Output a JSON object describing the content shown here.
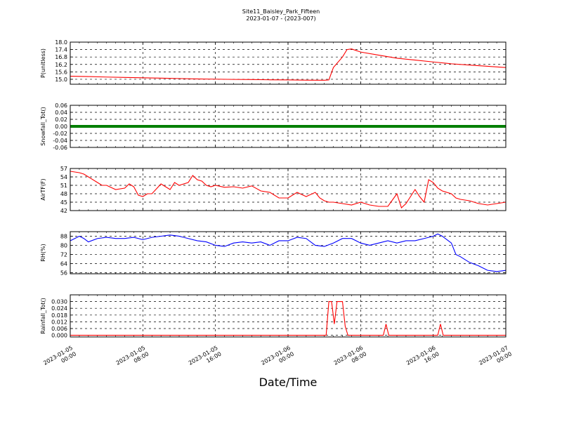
{
  "title": "Site11_Baisley_Park_Fifteen",
  "subtitle": "2023-01-07 - (2023-007)",
  "xlabel": "Date/Time",
  "x_ticks": [
    {
      "l1": "2023-01-05",
      "l2": "00:00",
      "h": 0
    },
    {
      "l1": "2023-01-05",
      "l2": "08:00",
      "h": 8
    },
    {
      "l1": "2023-01-05",
      "l2": "16:00",
      "h": 16
    },
    {
      "l1": "2023-01-06",
      "l2": "00:00",
      "h": 24
    },
    {
      "l1": "2023-01-06",
      "l2": "08:00",
      "h": 32
    },
    {
      "l1": "2023-01-06",
      "l2": "16:00",
      "h": 40
    },
    {
      "l1": "2023-01-07",
      "l2": "00:00",
      "h": 48
    }
  ],
  "chart_data": [
    {
      "type": "line",
      "name": "pressure",
      "ylabel": "P(unitless)",
      "ylim": [
        14.6,
        18.0
      ],
      "yticks": [
        15.0,
        15.6,
        16.2,
        16.8,
        17.4,
        18.0
      ],
      "decimals": 1,
      "color": "#ff0000",
      "x": [
        0,
        2,
        4,
        6,
        8,
        10,
        12,
        14,
        16,
        18,
        20,
        22,
        24,
        26,
        28,
        28.5,
        29,
        30,
        30.5,
        31,
        32,
        34,
        36,
        38,
        40,
        42,
        44,
        46,
        48
      ],
      "y": [
        15.25,
        15.22,
        15.18,
        15.15,
        15.12,
        15.09,
        15.06,
        15.03,
        15.01,
        14.99,
        14.98,
        14.96,
        14.95,
        14.93,
        14.92,
        14.95,
        15.95,
        16.8,
        17.4,
        17.45,
        17.2,
        16.95,
        16.7,
        16.55,
        16.4,
        16.25,
        16.15,
        16.05,
        15.95
      ],
      "grid": true
    },
    {
      "type": "line",
      "name": "snowfall",
      "ylabel": "Snowfall_Tot()",
      "ylim": [
        -0.06,
        0.06
      ],
      "yticks": [
        -0.06,
        -0.04,
        -0.02,
        0.0,
        0.02,
        0.04,
        0.06
      ],
      "decimals": 2,
      "color": "#007f00",
      "x": [
        0,
        48
      ],
      "y": [
        0.0,
        0.0
      ],
      "grid": true
    },
    {
      "type": "line",
      "name": "air_temperature",
      "ylabel": "AirTF(F)",
      "ylim": [
        42,
        57
      ],
      "yticks": [
        42,
        45,
        48,
        51,
        54,
        57
      ],
      "decimals": 0,
      "color": "#ff0000",
      "x": [
        0,
        1,
        1.5,
        2,
        3,
        3.5,
        4,
        5,
        6,
        6.5,
        7,
        7.5,
        8,
        8.5,
        9,
        10,
        11,
        11.5,
        12,
        13,
        13.5,
        14,
        14.5,
        15,
        15.5,
        16,
        17,
        18,
        19,
        20,
        21,
        22,
        23,
        24,
        25,
        26,
        27,
        27.5,
        28,
        28.5,
        29,
        30,
        31,
        32,
        33,
        34,
        35,
        36,
        36.5,
        37,
        38,
        38.5,
        39,
        39.5,
        40,
        40.5,
        41,
        42,
        42.5,
        43,
        44,
        45,
        46,
        47,
        48
      ],
      "y": [
        56,
        55.5,
        55,
        54,
        52,
        51,
        51,
        49.5,
        50,
        51.5,
        50.5,
        47.5,
        47,
        48,
        48,
        51.5,
        49.5,
        52,
        51,
        52,
        54.5,
        53,
        52.5,
        51,
        50.5,
        51,
        50.3,
        50.5,
        50,
        50.8,
        49,
        48.5,
        46.5,
        46.5,
        48.5,
        47,
        48.5,
        46.5,
        45.5,
        45,
        45,
        44.5,
        44,
        45,
        44,
        43.5,
        43.5,
        48,
        43,
        44.5,
        49.5,
        47,
        45,
        53,
        52,
        50,
        49,
        48,
        46.5,
        46,
        45.5,
        44.5,
        44,
        44.5,
        45
      ],
      "grid": true
    },
    {
      "type": "line",
      "name": "relative_humidity",
      "ylabel": "RH(%)",
      "ylim": [
        55,
        92
      ],
      "yticks": [
        56,
        64,
        72,
        80,
        88
      ],
      "decimals": 0,
      "color": "#0000ff",
      "x": [
        0,
        1,
        1.5,
        2,
        3,
        4,
        5,
        6,
        7,
        8,
        9,
        10,
        11,
        12,
        13,
        14,
        15,
        16,
        17,
        18,
        19,
        20,
        21,
        22,
        23,
        24,
        25,
        26,
        27,
        28,
        29,
        30,
        31,
        32,
        33,
        34,
        35,
        36,
        37,
        38,
        39,
        40,
        40.5,
        41,
        41.5,
        42,
        42.5,
        43,
        44,
        45,
        46,
        47,
        48
      ],
      "y": [
        84,
        88,
        86,
        83,
        86,
        87,
        86,
        86,
        87,
        85,
        87,
        88,
        89,
        88,
        86,
        84,
        83,
        80,
        79,
        82,
        83,
        82,
        83,
        80,
        84,
        84,
        87,
        86,
        80,
        79,
        82,
        86,
        86,
        82,
        80,
        82,
        84,
        82,
        84,
        84,
        86,
        88,
        90,
        88,
        85,
        82,
        72,
        70,
        65,
        62,
        58,
        57,
        58
      ],
      "grid": true
    },
    {
      "type": "line",
      "name": "rainfall",
      "ylabel": "Rainfall_Tot()",
      "ylim": [
        -0.0015,
        0.036
      ],
      "yticks": [
        0.0,
        0.006,
        0.012,
        0.018,
        0.024,
        0.03
      ],
      "decimals": 3,
      "color": "#ff0000",
      "x": [
        0,
        28.2,
        28.5,
        28.8,
        29.1,
        29.4,
        29.7,
        30.0,
        30.3,
        30.6,
        34.5,
        34.8,
        35.1,
        40.5,
        40.8,
        41.1,
        48
      ],
      "y": [
        0,
        0,
        0.03,
        0.03,
        0.01,
        0.03,
        0.03,
        0.03,
        0.008,
        0,
        0,
        0.01,
        0,
        0,
        0.01,
        0,
        0
      ],
      "grid": true
    }
  ]
}
